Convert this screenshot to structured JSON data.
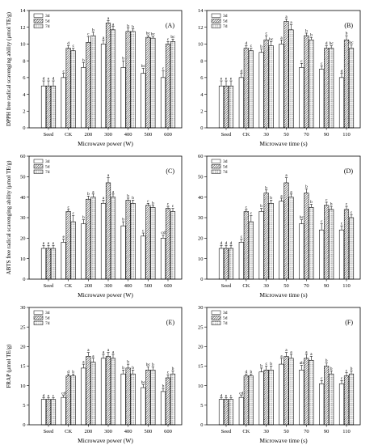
{
  "chart_data": [
    {
      "type": "bar",
      "title": "(A)",
      "xlabel": "Microwave power (W)",
      "ylabel": "DPPH free radical scavenging ability (μmol TE/g)",
      "ylim": [
        0,
        14
      ],
      "yticks": [
        0,
        2,
        4,
        6,
        8,
        10,
        12,
        14
      ],
      "legend_position": "top-left",
      "categories": [
        "Seed",
        "CK",
        "200",
        "300",
        "400",
        "500",
        "600"
      ],
      "series": [
        {
          "name": "3d",
          "values": [
            5.0,
            6.0,
            7.2,
            10.0,
            7.2,
            6.5,
            6.0
          ],
          "errors": [
            0.6,
            0.5,
            0.6,
            0.5,
            0.8,
            0.6,
            0.8
          ],
          "letters": [
            "d",
            "c",
            "b",
            "a",
            "b",
            "bc",
            "c"
          ]
        },
        {
          "name": "5d",
          "values": [
            5.0,
            9.5,
            10.2,
            12.5,
            11.5,
            10.8,
            10.0
          ],
          "errors": [
            0.6,
            0.3,
            0.7,
            0.3,
            0.4,
            0.2,
            0.3
          ],
          "letters": [
            "e",
            "d",
            "c",
            "a",
            "b",
            "bc",
            "c"
          ]
        },
        {
          "name": "7d",
          "values": [
            5.0,
            9.2,
            11.0,
            11.7,
            11.5,
            10.7,
            10.3
          ],
          "errors": [
            0.6,
            0.3,
            0.4,
            0.4,
            0.3,
            0.2,
            0.3
          ],
          "letters": [
            "d",
            "c",
            "b",
            "a",
            "b",
            "bc",
            "bc"
          ]
        }
      ]
    },
    {
      "type": "bar",
      "title": "(B)",
      "xlabel": "Microwave time (s)",
      "ylabel": "",
      "ylim": [
        0,
        14
      ],
      "yticks": [
        0,
        2,
        4,
        6,
        8,
        10,
        12,
        14
      ],
      "legend_position": "top-left",
      "categories": [
        "Seed",
        "CK",
        "30",
        "50",
        "70",
        "90",
        "110"
      ],
      "series": [
        {
          "name": "3d",
          "values": [
            5.0,
            6.0,
            9.0,
            10.0,
            7.2,
            7.0,
            6.0
          ],
          "errors": [
            0.6,
            0.5,
            0.4,
            0.5,
            0.5,
            0.4,
            0.5
          ],
          "letters": [
            "e",
            "d",
            "b",
            "a",
            "c",
            "c",
            "d"
          ]
        },
        {
          "name": "5d",
          "values": [
            5.0,
            9.5,
            10.5,
            12.7,
            11.0,
            9.5,
            10.5
          ],
          "errors": [
            0.6,
            0.3,
            0.5,
            0.3,
            0.3,
            0.3,
            0.5
          ],
          "letters": [
            "e",
            "d",
            "c",
            "a",
            "b",
            "d",
            "b"
          ]
        },
        {
          "name": "7d",
          "values": [
            5.0,
            9.2,
            9.8,
            11.7,
            10.5,
            9.5,
            9.5
          ],
          "errors": [
            0.6,
            0.3,
            0.5,
            0.6,
            0.3,
            0.3,
            0.4
          ],
          "letters": [
            "e",
            "c",
            "bc",
            "a",
            "b",
            "bc",
            "bc"
          ]
        }
      ]
    },
    {
      "type": "bar",
      "title": "(C)",
      "xlabel": "Microwave power (W)",
      "ylabel": "ABTS free radical scavenging ability (μmol TE/g)",
      "ylim": [
        0,
        60
      ],
      "yticks": [
        0,
        10,
        20,
        30,
        40,
        50,
        60
      ],
      "legend_position": "top-left",
      "categories": [
        "Seed",
        "CK",
        "200",
        "300",
        "400",
        "500",
        "600"
      ],
      "series": [
        {
          "name": "3d",
          "values": [
            15,
            18,
            27,
            37,
            26,
            21,
            20
          ],
          "errors": [
            1.5,
            1.5,
            2,
            1.5,
            2,
            1.5,
            1.5
          ],
          "letters": [
            "e",
            "e",
            "b",
            "a",
            "b",
            "c",
            "cd"
          ]
        },
        {
          "name": "5d",
          "values": [
            15,
            33,
            39,
            47,
            38.5,
            36,
            34.5
          ],
          "errors": [
            1.5,
            1,
            1.5,
            2.5,
            1,
            1,
            1
          ],
          "letters": [
            "e",
            "c",
            "b",
            "a",
            "b",
            "c",
            "c"
          ]
        },
        {
          "name": "7d",
          "values": [
            15,
            28,
            40,
            40,
            37,
            35,
            33
          ],
          "errors": [
            1.5,
            3,
            1.5,
            1.5,
            1.5,
            1,
            1.5
          ],
          "letters": [
            "e",
            "c",
            "a",
            "a",
            "b",
            "b",
            "c"
          ]
        }
      ]
    },
    {
      "type": "bar",
      "title": "(D)",
      "xlabel": "Microwave time (s)",
      "ylabel": "",
      "ylim": [
        0,
        60
      ],
      "yticks": [
        0,
        10,
        20,
        30,
        40,
        50,
        60
      ],
      "legend_position": "top-left",
      "categories": [
        "Seed",
        "CK",
        "30",
        "50",
        "70",
        "90",
        "110"
      ],
      "series": [
        {
          "name": "3d",
          "values": [
            15,
            18,
            33,
            38,
            27,
            24,
            24
          ],
          "errors": [
            1.5,
            1.5,
            1.5,
            1.5,
            2,
            3,
            2
          ],
          "letters": [
            "d",
            "c",
            "b",
            "a",
            "bc",
            "c",
            "c"
          ]
        },
        {
          "name": "5d",
          "values": [
            15,
            33,
            42,
            47,
            42,
            36,
            34
          ],
          "errors": [
            1.5,
            1,
            1.5,
            2.5,
            2,
            1.5,
            1.5
          ],
          "letters": [
            "d",
            "c",
            "b",
            "a",
            "b",
            "c",
            "c"
          ]
        },
        {
          "name": "7d",
          "values": [
            15,
            28,
            37,
            40,
            35,
            34,
            30
          ],
          "errors": [
            1.5,
            3,
            1.5,
            1.5,
            1.5,
            1.5,
            1.5
          ],
          "letters": [
            "d",
            "c",
            "b",
            "a",
            "b",
            "b",
            "c"
          ]
        }
      ]
    },
    {
      "type": "bar",
      "title": "(E)",
      "xlabel": "Microwave power (W)",
      "ylabel": "FRAP (μmol TE/g)",
      "ylim": [
        0,
        30
      ],
      "yticks": [
        0,
        5,
        10,
        15,
        20,
        25,
        30
      ],
      "legend_position": "top-left",
      "categories": [
        "Seed",
        "CK",
        "200",
        "300",
        "400",
        "500",
        "600"
      ],
      "series": [
        {
          "name": "3d",
          "values": [
            6.5,
            7.0,
            14.5,
            17.0,
            13.0,
            9.5,
            8.5
          ],
          "errors": [
            0.4,
            0.5,
            1,
            1,
            1,
            0.8,
            0.8
          ],
          "letters": [
            "d",
            "cd",
            "a",
            "a",
            "b",
            "bc",
            "b"
          ]
        },
        {
          "name": "5d",
          "values": [
            6.5,
            12.5,
            17.5,
            17.5,
            14.5,
            14.0,
            12.0
          ],
          "errors": [
            0.4,
            0.5,
            1,
            1,
            1,
            0.8,
            0.8
          ],
          "letters": [
            "e",
            "d",
            "a",
            "a",
            "b",
            "bc",
            "c"
          ]
        },
        {
          "name": "7d",
          "values": [
            6.5,
            12.5,
            16.0,
            17.0,
            13.0,
            14.0,
            13.0
          ],
          "errors": [
            0.4,
            0.5,
            1,
            1,
            1,
            0.8,
            0.8
          ],
          "letters": [
            "c",
            "b",
            "a",
            "a",
            "b",
            "b",
            "b"
          ]
        }
      ]
    },
    {
      "type": "bar",
      "title": "(F)",
      "xlabel": "Microwave time (s)",
      "ylabel": "",
      "ylim": [
        0,
        30
      ],
      "yticks": [
        0,
        5,
        10,
        15,
        20,
        25,
        30
      ],
      "legend_position": "top-left",
      "categories": [
        "Seed",
        "CK",
        "30",
        "50",
        "70",
        "90",
        "110"
      ],
      "series": [
        {
          "name": "3d",
          "values": [
            6.5,
            7.0,
            13.5,
            15.5,
            14.0,
            10.5,
            10.5
          ],
          "errors": [
            0.4,
            0.5,
            1,
            1.5,
            1.2,
            0.8,
            0.8
          ],
          "letters": [
            "d",
            "cd",
            "b",
            "a",
            "ab",
            "c",
            "c"
          ]
        },
        {
          "name": "5d",
          "values": [
            6.5,
            12.5,
            14.0,
            17.5,
            17.0,
            15.0,
            12.5
          ],
          "errors": [
            0.4,
            0.5,
            1,
            1,
            1,
            0.8,
            0.8
          ],
          "letters": [
            "e",
            "d",
            "c",
            "a",
            "a",
            "b",
            "c"
          ]
        },
        {
          "name": "7d",
          "values": [
            6.5,
            12.5,
            14.0,
            17.0,
            16.5,
            13.0,
            13.0
          ],
          "errors": [
            0.4,
            0.5,
            1,
            1,
            1,
            0.8,
            0.8
          ],
          "letters": [
            "c",
            "b",
            "b",
            "a",
            "a",
            "b",
            "b"
          ]
        }
      ]
    }
  ]
}
